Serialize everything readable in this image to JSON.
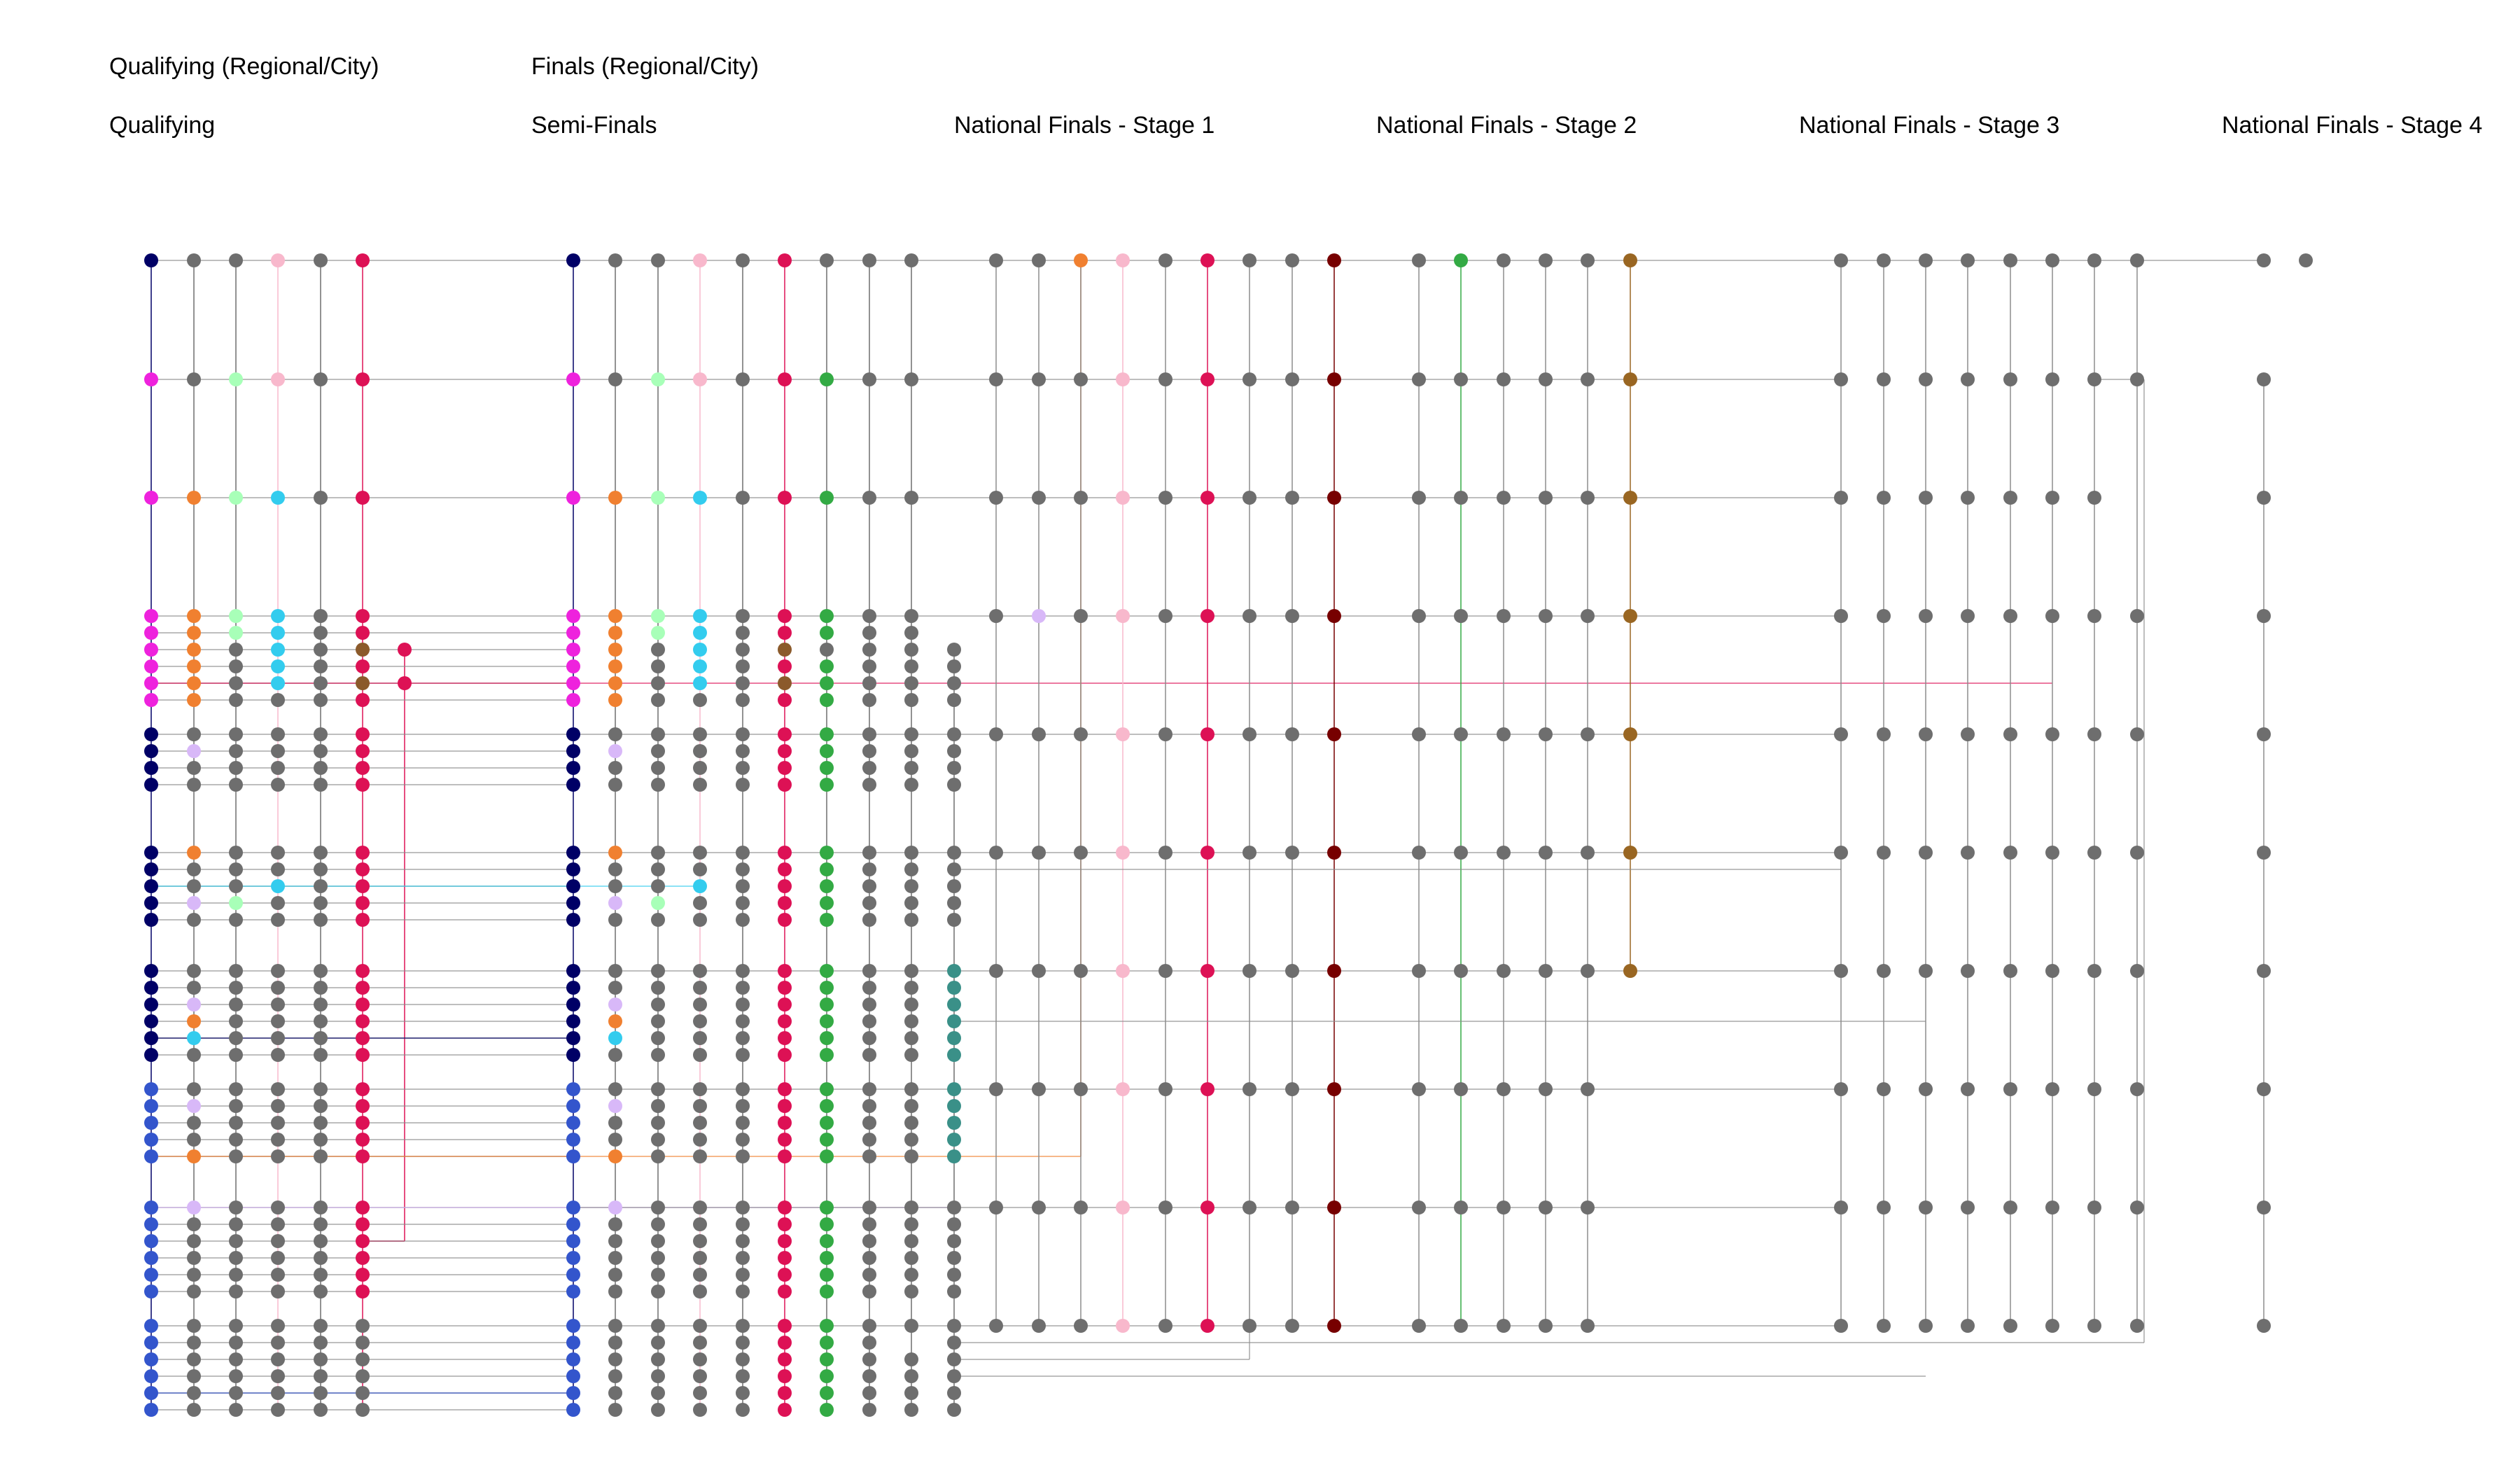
{
  "header_rows": {
    "top": [
      "Qualifying (Regional/City)",
      "Finals (Regional/City)"
    ],
    "stages": [
      "Qualifying",
      "Semi-Finals",
      "National Finals - Stage 1",
      "National Finals - Stage 2",
      "National Finals - Stage 3",
      "National Finals - Stage 4"
    ]
  },
  "colors": {
    "navy": "#000066",
    "magenta": "#ee22dd",
    "orange": "#f08030",
    "mint": "#a8ffb8",
    "cyan": "#33ccee",
    "gray": "#6e6e6e",
    "crimson": "#dd1155",
    "brown": "#8b5a2b",
    "green": "#33aa44",
    "teal": "#3a9088",
    "lavender": "#d8b8f8",
    "pink": "#f8b8cc",
    "royal": "#3355cc",
    "maroon": "#770000",
    "bronze": "#996622"
  }
}
